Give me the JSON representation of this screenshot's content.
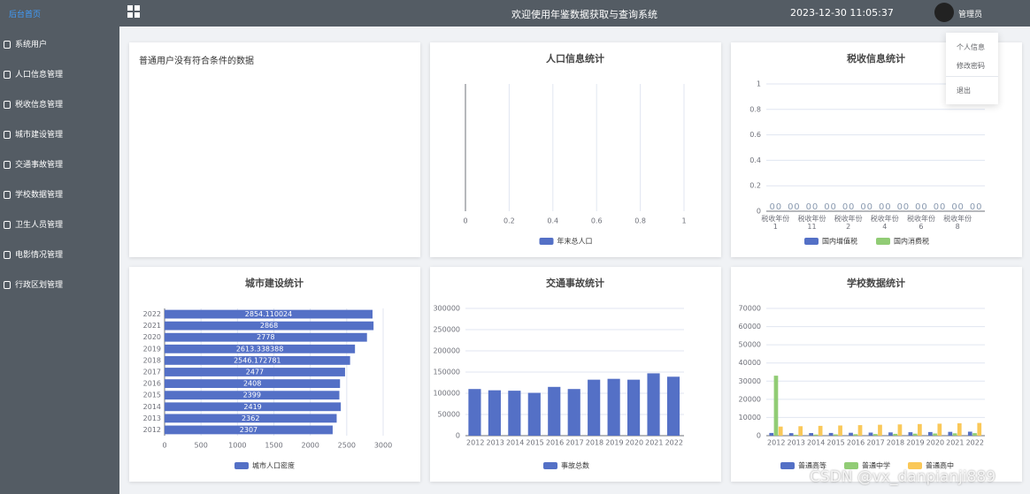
{
  "header": {
    "brand": "后台首页",
    "title": "欢迎使用年鉴数据获取与查询系统",
    "datetime": "2023-12-30 11:05:37",
    "user": "管理员"
  },
  "menu": [
    "系统用户",
    "人口信息管理",
    "税收信息管理",
    "城市建设管理",
    "交通事故管理",
    "学校数据管理",
    "卫生人员管理",
    "电影情况管理",
    "行政区划管理"
  ],
  "dropdown": [
    "个人信息",
    "修改密码",
    "退出"
  ],
  "notice": "普通用户没有符合条件的数据",
  "watermark": "CSDN @vx_danpianji889",
  "chart_data": [
    {
      "type": "hbar",
      "title": "人口信息统计",
      "categories": [],
      "xlim": [
        0,
        1
      ],
      "xticks": [
        0,
        0.2,
        0.4,
        0.6,
        0.8,
        1
      ],
      "grid": true,
      "series": [
        {
          "name": "年末总人口",
          "color": "#5470c6",
          "values": []
        }
      ]
    },
    {
      "type": "bar",
      "title": "税收信息统计",
      "categories": [
        "税收年份 1",
        null,
        "税收年份 11",
        null,
        "税收年份 2",
        null,
        "税收年份 4",
        null,
        "税收年份 6",
        null,
        "税收年份 8",
        null
      ],
      "ylim": [
        0,
        1
      ],
      "yticks": [
        0,
        0.2,
        0.4,
        0.6,
        0.8,
        1
      ],
      "grid": true,
      "show_labels": true,
      "series": [
        {
          "name": "国内增值税",
          "color": "#5470c6",
          "values": [
            0,
            0,
            0,
            0,
            0,
            0,
            0,
            0,
            0,
            0,
            0,
            0
          ]
        },
        {
          "name": "国内消费税",
          "color": "#91cc75",
          "values": [
            0,
            0,
            0,
            0,
            0,
            0,
            0,
            0,
            0,
            0,
            0,
            0
          ]
        }
      ]
    },
    {
      "type": "hbar",
      "title": "城市建设统计",
      "categories": [
        "2012",
        "2013",
        "2014",
        "2015",
        "2016",
        "2017",
        "2018",
        "2019",
        "2020",
        "2021",
        "2022"
      ],
      "xlim": [
        0,
        3000
      ],
      "xticks": [
        0,
        500,
        1000,
        1500,
        2000,
        2500,
        3000
      ],
      "grid": true,
      "show_labels": true,
      "series": [
        {
          "name": "城市人口密度",
          "color": "#5470c6",
          "values": [
            2307,
            2362,
            2419,
            2399,
            2408,
            2477,
            2546.172781,
            2613.338388,
            2778,
            2868,
            2854.110024
          ]
        }
      ]
    },
    {
      "type": "bar",
      "title": "交通事故统计",
      "categories": [
        "2012",
        "2013",
        "2014",
        "2015",
        "2016",
        "2017",
        "2018",
        "2019",
        "2020",
        "2021",
        "2022"
      ],
      "ylim": [
        0,
        300000
      ],
      "yticks": [
        0,
        50000,
        100000,
        150000,
        200000,
        250000,
        300000
      ],
      "grid": true,
      "series": [
        {
          "name": "事故总数",
          "color": "#5470c6",
          "values": [
            110000,
            107000,
            106000,
            101000,
            115000,
            110000,
            132000,
            134000,
            132000,
            147000,
            139000
          ]
        }
      ]
    },
    {
      "type": "bar",
      "title": "学校数据统计",
      "categories": [
        "2012",
        "2013",
        "2014",
        "2015",
        "2016",
        "2017",
        "2018",
        "2019",
        "2020",
        "2021",
        "2022"
      ],
      "ylim": [
        0,
        70000
      ],
      "yticks": [
        0,
        10000,
        20000,
        30000,
        40000,
        50000,
        60000,
        70000
      ],
      "grid": true,
      "series": [
        {
          "name": "普通高等",
          "color": "#5470c6",
          "values": [
            1500,
            1400,
            1450,
            1500,
            1600,
            1700,
            1800,
            1900,
            2000,
            2100,
            2200
          ]
        },
        {
          "name": "普通中学",
          "color": "#91cc75",
          "values": [
            33000,
            500,
            600,
            700,
            800,
            900,
            1000,
            1100,
            1200,
            1300,
            1400
          ]
        },
        {
          "name": "普通高中",
          "color": "#fac858",
          "values": [
            5000,
            5200,
            5400,
            5600,
            5800,
            6000,
            6200,
            6400,
            6600,
            6800,
            7000
          ]
        }
      ]
    }
  ]
}
